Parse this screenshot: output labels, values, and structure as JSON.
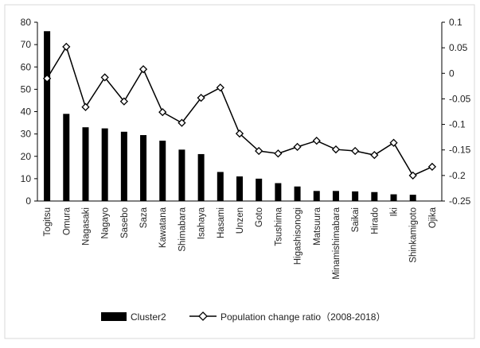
{
  "chart_data": {
    "type": "bar",
    "categories": [
      "Togitsu",
      "Omura",
      "Nagasaki",
      "Nagayo",
      "Sasebo",
      "Saza",
      "Kawatana",
      "Shimabara",
      "Isahaya",
      "Hasami",
      "Unzen",
      "Goto",
      "Tsushima",
      "Higashisonogi",
      "Matsuura",
      "Minamishimabara",
      "Saikai",
      "Hirado",
      "Iki",
      "Shinkamigoto",
      "Ojika"
    ],
    "series": [
      {
        "name": "Cluster2",
        "axis": "left",
        "type": "bar",
        "values": [
          76,
          39,
          33,
          32.5,
          31,
          29.5,
          27,
          23,
          21,
          13,
          11,
          10,
          8,
          6.5,
          4.5,
          4.5,
          4.3,
          4,
          3,
          2.8,
          null
        ]
      },
      {
        "name": "Population change ratio（2008-2018）",
        "axis": "right",
        "type": "line",
        "values": [
          -0.01,
          0.052,
          -0.066,
          -0.008,
          -0.055,
          0.008,
          -0.076,
          -0.097,
          -0.048,
          -0.028,
          -0.118,
          -0.152,
          -0.157,
          -0.144,
          -0.132,
          -0.149,
          -0.152,
          -0.16,
          -0.136,
          -0.2,
          -0.183
        ]
      }
    ],
    "left_axis": {
      "ylim": [
        0,
        80
      ],
      "ticks": [
        "0",
        "10",
        "20",
        "30",
        "40",
        "50",
        "60",
        "70",
        "80"
      ]
    },
    "right_axis": {
      "ylim": [
        -0.25,
        0.1
      ],
      "ticks": [
        "-0.25",
        "-0.2",
        "-0.15",
        "-0.1",
        "-0.05",
        "0",
        "0.05",
        "0.1"
      ]
    },
    "grid": false,
    "legend_position": "bottom",
    "colors": {
      "bar": "#000000",
      "line": "#000000",
      "marker_fill": "#ffffff",
      "axis": "#000000",
      "frame": "#d9d9d9"
    }
  }
}
